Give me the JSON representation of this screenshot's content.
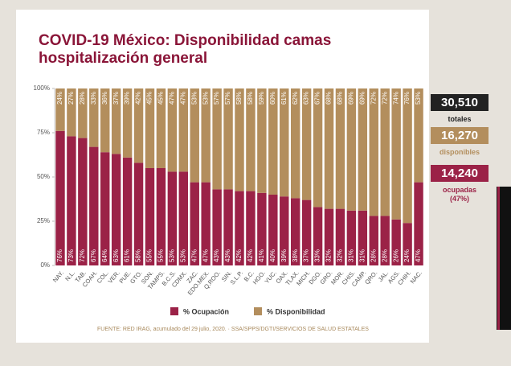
{
  "chart_data": {
    "type": "stacked_bar",
    "title": "COVID-19 México: Disponibilidad camas hospitalización general",
    "categories": [
      "NAY.",
      "N.L.",
      "TAB.",
      "COAH.",
      "COL.",
      "VER.",
      "PUE.",
      "GTO.",
      "SON.",
      "TAMPS.",
      "B.C.S.",
      "CDMX.",
      "ZAC.",
      "EDO.MEX.",
      "Q.ROO.",
      "SIN.",
      "S.L.P.",
      "B.C.",
      "HGO.",
      "YUC.",
      "OAX.",
      "TLAX.",
      "MICH.",
      "DGO.",
      "GRO.",
      "MOR.",
      "CHIS.",
      "CAMP.",
      "QRO.",
      "JAL.",
      "AGS.",
      "CHIH.",
      "NAC."
    ],
    "series": [
      {
        "name": "% Ocupación",
        "color": "#9b2247",
        "values": [
          76,
          73,
          72,
          67,
          64,
          63,
          61,
          58,
          55,
          55,
          53,
          53,
          47,
          47,
          43,
          43,
          42,
          42,
          41,
          40,
          39,
          38,
          37,
          33,
          32,
          32,
          31,
          31,
          28,
          28,
          26,
          24,
          47
        ],
        "value_labels": [
          "76%",
          "73%",
          "72%",
          "67%",
          "64%",
          "63%",
          "61%",
          "58%",
          "55%",
          "55%",
          "53%",
          "53%",
          "47%",
          "47%",
          "43%",
          "43%",
          "42%",
          "42%",
          "41%",
          "40%",
          "39%",
          "38%",
          "37%",
          "33%",
          "32%",
          "32%",
          "31%",
          "31%",
          "28%",
          "28%",
          "26%",
          "24%",
          "47%"
        ]
      },
      {
        "name": "% Disponibilidad",
        "color": "#b38e5d",
        "values": [
          24,
          27,
          28,
          33,
          36,
          37,
          39,
          42,
          45,
          45,
          47,
          47,
          53,
          53,
          57,
          57,
          58,
          58,
          59,
          60,
          61,
          62,
          63,
          67,
          68,
          68,
          69,
          69,
          72,
          72,
          74,
          76,
          53
        ],
        "value_labels": [
          "24%",
          "27%",
          "28%",
          "33%",
          "36%",
          "37%",
          "39%",
          "42%",
          "45%",
          "45%",
          "47%",
          "47%",
          "53%",
          "53%",
          "57%",
          "57%",
          "58%",
          "58%",
          "59%",
          "60%",
          "61%",
          "62%",
          "63%",
          "67%",
          "68%",
          "68%",
          "69%",
          "69%",
          "72%",
          "72%",
          "74%",
          "76%",
          "53%"
        ]
      }
    ],
    "ylim": [
      0,
      100
    ],
    "yticks": [
      {
        "value": 0,
        "label": "0%"
      },
      {
        "value": 25,
        "label": "25%"
      },
      {
        "value": 50,
        "label": "50%"
      },
      {
        "value": 75,
        "label": "75%"
      },
      {
        "value": 100,
        "label": "100%"
      }
    ],
    "legend": "bottom"
  },
  "summary": [
    {
      "number": "30,510",
      "label": "totales",
      "color": "#222222"
    },
    {
      "number": "16,270",
      "label": "disponibles",
      "color": "#b38e5d"
    },
    {
      "number": "14,240",
      "label": "ocupadas (47%)",
      "color": "#9b2247"
    }
  ],
  "footer": "FUENTE: RED IRAG, acumulado del 29 julio, 2020.  · SSA/SPPS/DGTI/SERVICIOS DE SALUD ESTATALES"
}
